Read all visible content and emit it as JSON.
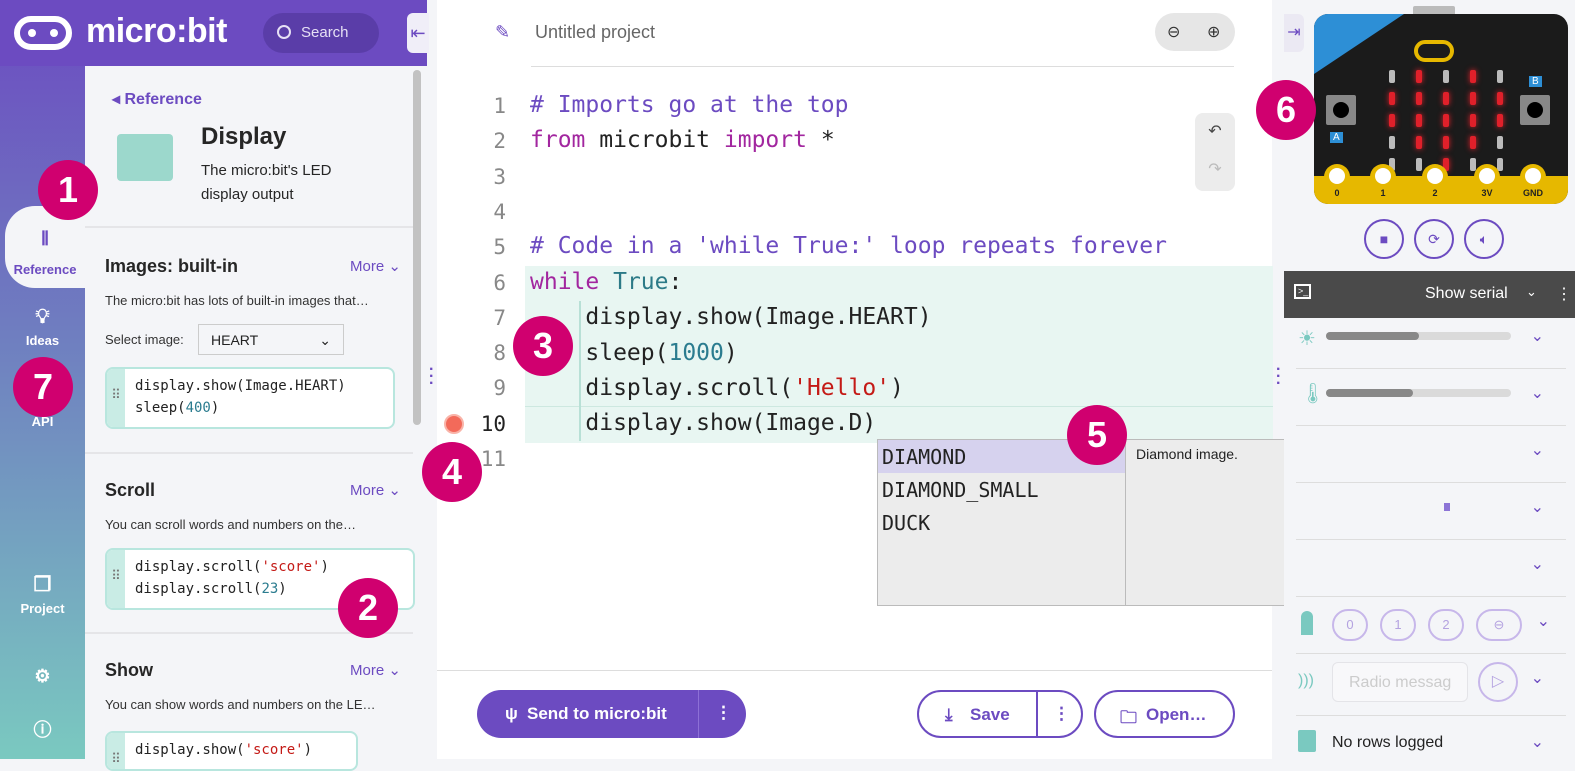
{
  "header": {
    "brand": "micro:bit",
    "search_placeholder": "Search"
  },
  "rail": {
    "items": [
      {
        "label": "Reference",
        "icon": "library-icon"
      },
      {
        "label": "Ideas",
        "icon": "lightbulb-icon"
      },
      {
        "label": "API",
        "icon": "api-icon"
      },
      {
        "label": "Project",
        "icon": "files-icon"
      }
    ],
    "settings_icon": "gear-icon",
    "help_icon": "help-icon"
  },
  "panel": {
    "back_label": "Reference",
    "title": "Display",
    "subtitle": "The micro:bit's LED display output",
    "sections": [
      {
        "title": "Images: built-in",
        "more": "More",
        "desc": "The micro:bit has lots of built-in images that…",
        "select_label": "Select image:",
        "select_value": "HEART",
        "code": [
          "display.show(Image.HEART)",
          "sleep(400)"
        ]
      },
      {
        "title": "Scroll",
        "more": "More",
        "desc": "You can scroll words and numbers on the…",
        "code": [
          "display.scroll('score')",
          "display.scroll(23)"
        ]
      },
      {
        "title": "Show",
        "more": "More",
        "desc": "You can show words and numbers on the LE…",
        "code": [
          "display.show('score')"
        ]
      }
    ]
  },
  "editor": {
    "project_title": "Untitled project",
    "line_numbers": [
      "1",
      "2",
      "3",
      "4",
      "5",
      "6",
      "7",
      "8",
      "9",
      "10",
      "11"
    ],
    "lines": [
      "# Imports go at the top",
      "from microbit import *",
      "",
      "",
      "# Code in a 'while True:' loop repeats forever",
      "while True:",
      "    display.show(Image.HEART)",
      "    sleep(1000)",
      "    display.scroll('Hello')",
      "    display.show(Image.D)",
      ""
    ],
    "autocomplete": {
      "items": [
        "DIAMOND",
        "DIAMOND_SMALL",
        "DUCK"
      ],
      "selected": "DIAMOND",
      "doc": "Diamond image."
    },
    "send_label": "Send to micro:bit",
    "save_label": "Save",
    "open_label": "Open…"
  },
  "simulator": {
    "pins": [
      "0",
      "1",
      "2",
      "3V",
      "GND"
    ],
    "button_a": "A",
    "button_b": "B",
    "serial_label": "Show serial",
    "light_level": 0.5,
    "temperature_level": 0.47,
    "touch_pins": [
      "0",
      "1",
      "2"
    ],
    "radio_placeholder": "Radio messag",
    "data_log": "No rows logged",
    "display": [
      [
        0,
        1,
        0,
        1,
        0
      ],
      [
        1,
        1,
        1,
        1,
        1
      ],
      [
        1,
        1,
        1,
        1,
        1
      ],
      [
        0,
        1,
        1,
        1,
        0
      ],
      [
        0,
        0,
        1,
        0,
        0
      ]
    ],
    "led_on_color": "#e0202a",
    "accent": "#6c4bc1"
  },
  "badges": [
    "1",
    "2",
    "3",
    "4",
    "5",
    "6",
    "7"
  ]
}
